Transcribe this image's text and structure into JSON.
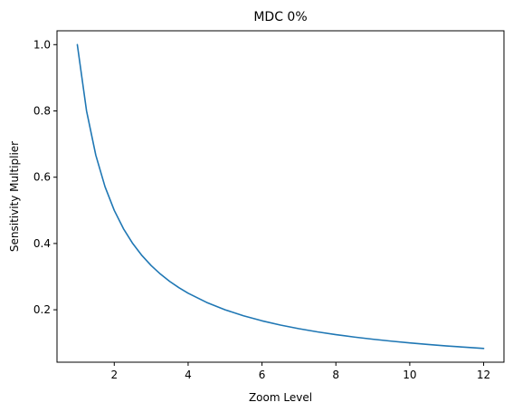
{
  "chart_data": {
    "type": "line",
    "title": "MDC 0%",
    "xlabel": "Zoom Level",
    "ylabel": "Sensitivity Multiplier",
    "xlim": [
      0.45,
      12.55
    ],
    "ylim": [
      0.0418,
      1.0418
    ],
    "xticks": [
      2,
      4,
      6,
      8,
      10,
      12
    ],
    "yticks": [
      0.2,
      0.4,
      0.6,
      0.8,
      1.0
    ],
    "xtick_labels": [
      "2",
      "4",
      "6",
      "8",
      "10",
      "12"
    ],
    "ytick_labels": [
      "0.2",
      "0.4",
      "0.6",
      "0.8",
      "1.0"
    ],
    "grid": false,
    "series": [
      {
        "color": "#1f77b4",
        "x": [
          1,
          1.25,
          1.5,
          1.75,
          2,
          2.25,
          2.5,
          2.75,
          3,
          3.25,
          3.5,
          3.75,
          4,
          4.5,
          5,
          5.5,
          6,
          6.5,
          7,
          7.5,
          8,
          8.5,
          9,
          9.5,
          10,
          10.5,
          11,
          11.5,
          12
        ],
        "y": [
          1.0,
          0.8,
          0.6667,
          0.5714,
          0.5,
          0.4444,
          0.4,
          0.3636,
          0.3333,
          0.3077,
          0.2857,
          0.2667,
          0.25,
          0.2222,
          0.2,
          0.1818,
          0.1667,
          0.1538,
          0.1429,
          0.1333,
          0.125,
          0.1176,
          0.1111,
          0.1053,
          0.1,
          0.0952,
          0.0909,
          0.087,
          0.0833
        ]
      }
    ]
  }
}
